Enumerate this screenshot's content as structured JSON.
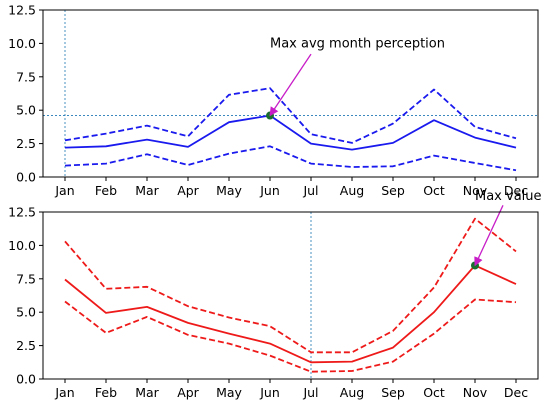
{
  "chart_data": [
    {
      "type": "line",
      "categories": [
        "Jan",
        "Feb",
        "Mar",
        "Apr",
        "May",
        "Jun",
        "Jul",
        "Aug",
        "Sep",
        "Oct",
        "Nov",
        "Dec"
      ],
      "ylim": [
        0,
        12.5
      ],
      "yticks": [
        "0.0",
        "2.5",
        "5.0",
        "7.5",
        "10.0",
        "12.5"
      ],
      "grid": false,
      "color": "#1a1aee",
      "series": [
        {
          "style": "solid",
          "values": [
            2.2,
            2.3,
            2.8,
            2.25,
            4.1,
            4.6,
            2.5,
            2.05,
            2.55,
            4.25,
            2.95,
            2.2
          ]
        },
        {
          "style": "dashed",
          "values": [
            2.75,
            3.25,
            3.85,
            3.05,
            6.15,
            6.65,
            3.2,
            2.55,
            4.0,
            6.55,
            3.75,
            2.9
          ]
        },
        {
          "style": "dashed",
          "values": [
            0.85,
            1.0,
            1.7,
            0.9,
            1.75,
            2.3,
            1.0,
            0.75,
            0.8,
            1.6,
            1.05,
            0.5
          ]
        }
      ],
      "marker": {
        "category": "Jun",
        "value": 4.6,
        "color": "#1a6e2e"
      },
      "reference_lines": {
        "vertical_category": "Jan",
        "horizontal_value": 4.6
      },
      "annotation": {
        "text": "Max avg month perception",
        "text_anchor": {
          "category": "Jun",
          "value": 9.7
        },
        "arrow_from": {
          "category": "Jul",
          "value": 9.2
        },
        "arrow_to": {
          "category": "Jun",
          "value": 4.6
        },
        "arrow_color": "#c81ec8"
      }
    },
    {
      "type": "line",
      "categories": [
        "Jan",
        "Feb",
        "Mar",
        "Apr",
        "May",
        "Jun",
        "Jul",
        "Aug",
        "Sep",
        "Oct",
        "Nov",
        "Dec"
      ],
      "ylim": [
        0,
        12.5
      ],
      "yticks": [
        "0.0",
        "2.5",
        "5.0",
        "7.5",
        "10.0",
        "12.5"
      ],
      "grid": false,
      "color": "#ee1a1a",
      "series": [
        {
          "style": "solid",
          "values": [
            7.45,
            4.95,
            5.4,
            4.2,
            3.4,
            2.65,
            1.25,
            1.3,
            2.35,
            5.0,
            8.5,
            7.1
          ]
        },
        {
          "style": "dashed",
          "values": [
            10.3,
            6.75,
            6.9,
            5.45,
            4.6,
            3.95,
            2.0,
            2.0,
            3.6,
            6.85,
            12.0,
            9.55
          ]
        },
        {
          "style": "dashed",
          "values": [
            5.8,
            3.45,
            4.65,
            3.3,
            2.65,
            1.75,
            0.55,
            0.6,
            1.3,
            3.4,
            5.95,
            5.75
          ]
        }
      ],
      "marker": {
        "category": "Nov",
        "value": 8.5,
        "color": "#1a6e2e"
      },
      "reference_lines": {
        "vertical_category": "Jul"
      },
      "annotation": {
        "text": "Max value",
        "text_anchor": {
          "category": "Nov",
          "value": 13.4
        },
        "arrow_from": {
          "category": "Nov",
          "value": 13.0
        },
        "arrow_to": {
          "category": "Nov",
          "value": 8.5
        },
        "arrow_color": "#c81ec8"
      }
    }
  ]
}
